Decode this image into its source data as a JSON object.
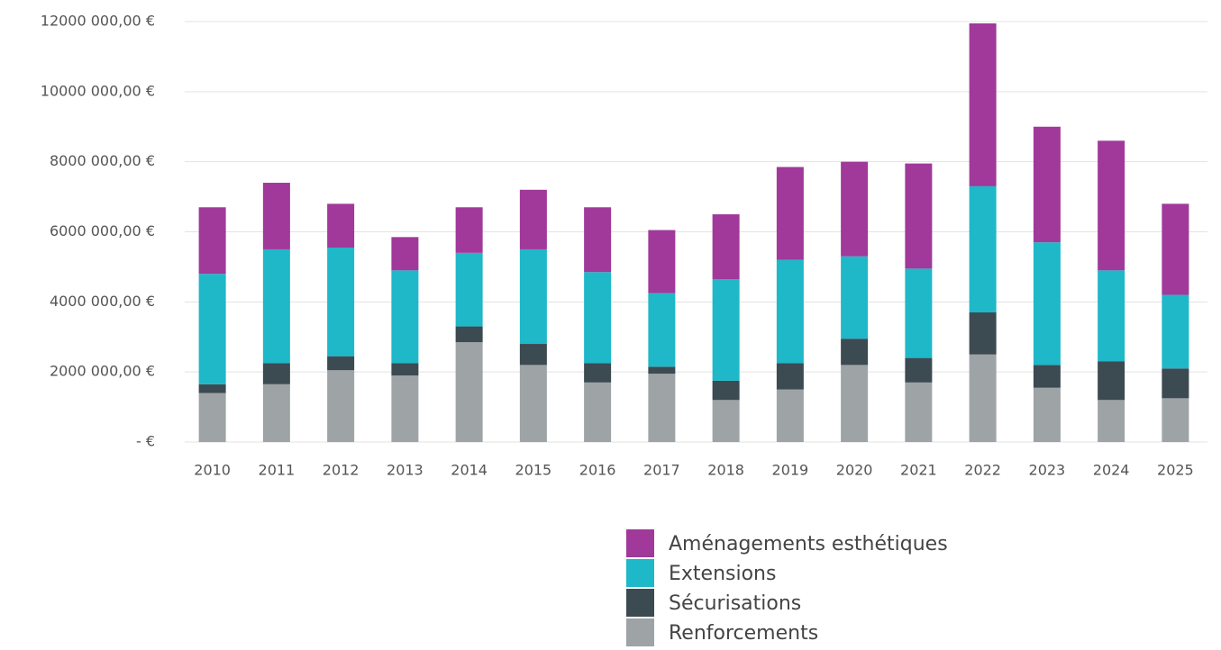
{
  "chart_data": {
    "type": "stacked_bar",
    "categories": [
      "2010",
      "2011",
      "2012",
      "2013",
      "2014",
      "2015",
      "2016",
      "2017",
      "2018",
      "2019",
      "2020",
      "2021",
      "2022",
      "2023",
      "2024",
      "2025"
    ],
    "series": [
      {
        "name": "Renforcements",
        "color": "#9ea3a6",
        "values": [
          1400000,
          1650000,
          2050000,
          1900000,
          2850000,
          2200000,
          1700000,
          1950000,
          1200000,
          1500000,
          2200000,
          1700000,
          2500000,
          1550000,
          1200000,
          1250000
        ]
      },
      {
        "name": "Sécurisations",
        "color": "#3c4a52",
        "values": [
          250000,
          600000,
          400000,
          350000,
          450000,
          600000,
          550000,
          200000,
          550000,
          750000,
          750000,
          700000,
          1200000,
          650000,
          1100000,
          850000
        ]
      },
      {
        "name": "Extensions",
        "color": "#1fb8c8",
        "values": [
          3150000,
          3250000,
          3100000,
          2650000,
          2100000,
          2700000,
          2600000,
          2100000,
          2900000,
          2950000,
          2350000,
          2550000,
          3600000,
          3500000,
          2600000,
          2100000
        ]
      },
      {
        "name": "Aménagements esthétiques",
        "color": "#a0399a",
        "values": [
          1900000,
          1900000,
          1250000,
          950000,
          1300000,
          1700000,
          1850000,
          1800000,
          1850000,
          2650000,
          2700000,
          3000000,
          4650000,
          3300000,
          3700000,
          2600000
        ]
      }
    ],
    "ylim": [
      0,
      12000000
    ],
    "yticks": [
      {
        "value": 0,
        "label": "-  €"
      },
      {
        "value": 2000000,
        "label": "2000 000,00 €"
      },
      {
        "value": 4000000,
        "label": "4000 000,00 €"
      },
      {
        "value": 6000000,
        "label": "6000 000,00 €"
      },
      {
        "value": 8000000,
        "label": "8000 000,00 €"
      },
      {
        "value": 10000000,
        "label": "10000 000,00 €"
      },
      {
        "value": 12000000,
        "label": "12000 000,00 €"
      }
    ],
    "grid": true
  }
}
